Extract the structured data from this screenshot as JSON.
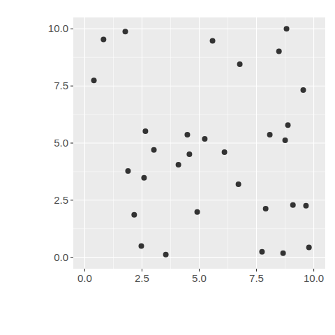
{
  "chart_data": {
    "type": "scatter",
    "color": "#333333",
    "marker": "circle",
    "grid": true,
    "x": [
      0.4,
      0.82,
      1.77,
      1.89,
      2.16,
      2.47,
      2.65,
      2.59,
      3.02,
      3.54,
      4.09,
      4.48,
      4.57,
      4.91,
      5.24,
      5.58,
      6.1,
      6.71,
      6.77,
      7.74,
      7.9,
      8.08,
      8.48,
      8.66,
      8.75,
      8.81,
      8.87,
      9.09,
      9.54,
      9.66,
      9.79
    ],
    "values": [
      7.74,
      9.54,
      9.88,
      3.78,
      1.86,
      0.49,
      5.52,
      3.48,
      4.7,
      0.12,
      4.05,
      5.37,
      4.51,
      1.98,
      5.18,
      9.48,
      4.6,
      3.2,
      8.45,
      0.24,
      2.13,
      5.37,
      9.02,
      0.18,
      5.12,
      10.0,
      5.79,
      2.29,
      7.32,
      2.26,
      0.43
    ],
    "xlim": [
      -0.5,
      10.5
    ],
    "ylim": [
      -0.5,
      10.5
    ],
    "xticks": [
      {
        "value": 0,
        "label": "0.0"
      },
      2.5,
      {
        "value": 5,
        "label": "5.0"
      },
      7.5,
      {
        "value": 10,
        "label": "10.0"
      }
    ],
    "yticks": [
      {
        "value": 0,
        "label": "0.0"
      },
      2.5,
      {
        "value": 5,
        "label": "5.0"
      },
      7.5,
      {
        "value": 10,
        "label": "10.0"
      }
    ]
  }
}
